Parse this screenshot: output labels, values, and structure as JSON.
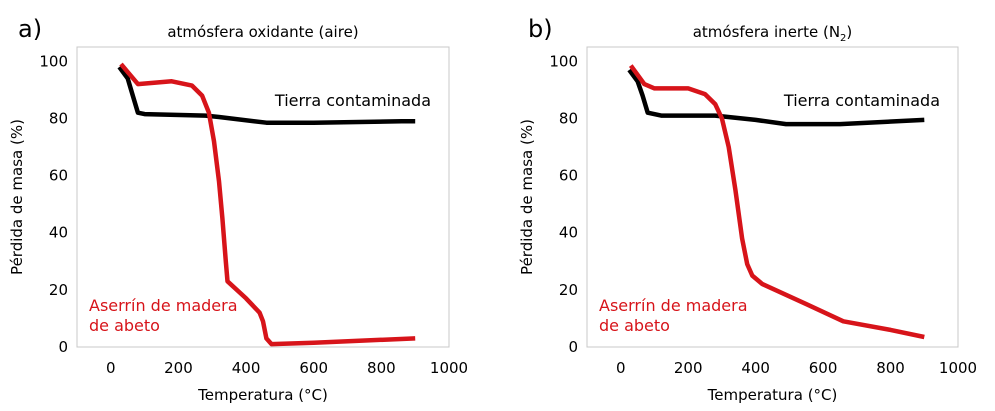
{
  "chart_data": [
    {
      "type": "line",
      "panel_label": "a)",
      "title": "atmósfera oxidante (aire)",
      "xlabel": "Temperatura (°C)",
      "ylabel": "Pérdida de masa (%)",
      "xlim": [
        -100,
        1000
      ],
      "ylim": [
        0,
        105
      ],
      "xticks": [
        0,
        200,
        400,
        600,
        800,
        1000
      ],
      "yticks": [
        0,
        20,
        40,
        60,
        80,
        100
      ],
      "grid": false,
      "series": [
        {
          "name": "Tierra contaminada",
          "color": "#000000",
          "x": [
            25,
            50,
            65,
            80,
            100,
            280,
            320,
            460,
            600,
            860,
            900
          ],
          "y": [
            98,
            94,
            88,
            82,
            81.5,
            81,
            80.5,
            78.5,
            78.5,
            79,
            79
          ]
        },
        {
          "name": "Aserrín de madera de abeto",
          "color": "#d7141a",
          "x": [
            30,
            80,
            180,
            240,
            270,
            290,
            305,
            320,
            330,
            340,
            345,
            400,
            440,
            450,
            460,
            475,
            600,
            900
          ],
          "y": [
            99,
            92,
            93,
            91.5,
            88,
            82,
            72,
            58,
            45,
            30,
            23,
            17,
            12,
            9,
            3,
            1,
            1.5,
            3
          ]
        }
      ],
      "annotations": [
        {
          "text": "Tierra contaminada",
          "color": "#000000"
        },
        {
          "text_lines": [
            "Aserrín de madera",
            "de abeto"
          ],
          "color": "#d7141a"
        }
      ]
    },
    {
      "type": "line",
      "panel_label": "b)",
      "title": "atmósfera inerte (N",
      "title_sub": "2",
      "title_end": ")",
      "xlabel": "Temperatura (°C)",
      "ylabel": "Pérdida de masa (%)",
      "xlim": [
        -100,
        1000
      ],
      "ylim": [
        0,
        105
      ],
      "xticks": [
        0,
        200,
        400,
        600,
        800,
        1000
      ],
      "yticks": [
        0,
        20,
        40,
        60,
        80,
        100
      ],
      "grid": false,
      "series": [
        {
          "name": "Tierra contaminada",
          "color": "#000000",
          "x": [
            25,
            50,
            65,
            80,
            120,
            280,
            400,
            490,
            650,
            900
          ],
          "y": [
            97,
            93,
            88,
            82,
            81,
            81,
            79.5,
            78,
            78,
            79.5
          ]
        },
        {
          "name": "Aserrín de madera de abeto",
          "color": "#d7141a",
          "x": [
            30,
            70,
            100,
            200,
            250,
            280,
            300,
            320,
            340,
            360,
            375,
            390,
            420,
            550,
            660,
            800,
            900
          ],
          "y": [
            98.5,
            92,
            90.5,
            90.5,
            88.5,
            85,
            80,
            70,
            55,
            38,
            29,
            25,
            22,
            15,
            9,
            6,
            3.5
          ]
        }
      ],
      "annotations": [
        {
          "text": "Tierra contaminada",
          "color": "#000000"
        },
        {
          "text_lines": [
            "Aserrín de madera",
            "de abeto"
          ],
          "color": "#d7141a"
        }
      ]
    }
  ]
}
